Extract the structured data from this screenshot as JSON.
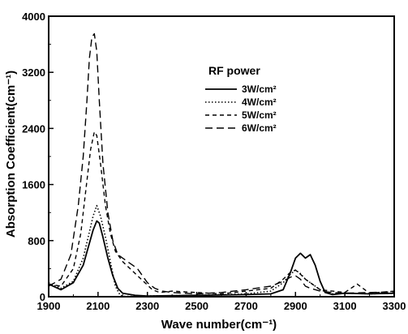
{
  "chart_data": {
    "type": "line",
    "title": "",
    "xlabel": "Wave number(cm⁻¹)",
    "ylabel": "Absorption Coefficient(cm⁻¹)",
    "xlim": [
      1900,
      3300
    ],
    "ylim": [
      0,
      4000
    ],
    "xticks": [
      "1900",
      "2100",
      "2300",
      "2500",
      "2700",
      "2900",
      "3100",
      "3300"
    ],
    "yticks": [
      "0",
      "800",
      "1600",
      "2400",
      "3200",
      "4000"
    ],
    "grid": false,
    "legend": {
      "title": "RF power",
      "placement": "top-right"
    },
    "series": [
      {
        "name": "3W/cm²",
        "dash": "solid",
        "x": [
          1900,
          1950,
          2000,
          2040,
          2060,
          2080,
          2095,
          2105,
          2120,
          2140,
          2160,
          2180,
          2200,
          2250,
          2300,
          2500,
          2700,
          2800,
          2850,
          2880,
          2900,
          2920,
          2940,
          2960,
          2980,
          3000,
          3020,
          3050,
          3100,
          3200,
          3300
        ],
        "y": [
          180,
          100,
          200,
          450,
          700,
          950,
          1080,
          1050,
          850,
          550,
          300,
          120,
          50,
          20,
          10,
          20,
          30,
          40,
          100,
          350,
          550,
          620,
          550,
          600,
          450,
          220,
          60,
          30,
          50,
          40,
          50
        ]
      },
      {
        "name": "4W/cm²",
        "dash": "dotted",
        "x": [
          1900,
          1950,
          2000,
          2040,
          2060,
          2080,
          2095,
          2110,
          2130,
          2150,
          2170,
          2190,
          2210,
          2250,
          2300,
          2500,
          2700,
          2800,
          2850,
          2880,
          2900,
          2920,
          2940,
          2960,
          2980,
          3000,
          3050,
          3100,
          3200,
          3300
        ],
        "y": [
          200,
          120,
          220,
          550,
          850,
          1150,
          1300,
          1150,
          850,
          500,
          150,
          20,
          5,
          5,
          10,
          20,
          40,
          80,
          200,
          320,
          380,
          330,
          250,
          200,
          150,
          100,
          40,
          50,
          40,
          50
        ]
      },
      {
        "name": "5W/cm²",
        "dash": "short-dash",
        "x": [
          1900,
          1950,
          2000,
          2030,
          2050,
          2070,
          2085,
          2095,
          2110,
          2130,
          2150,
          2170,
          2200,
          2230,
          2260,
          2290,
          2320,
          2350,
          2400,
          2500,
          2600,
          2700,
          2800,
          2850,
          2880,
          2900,
          2920,
          2940,
          2960,
          3000,
          3050,
          3100,
          3150,
          3200,
          3300
        ],
        "y": [
          180,
          150,
          400,
          900,
          1500,
          2100,
          2350,
          2300,
          1900,
          1300,
          900,
          650,
          500,
          400,
          300,
          200,
          100,
          60,
          80,
          60,
          40,
          80,
          120,
          250,
          350,
          380,
          320,
          250,
          200,
          100,
          80,
          60,
          180,
          50,
          80
        ]
      },
      {
        "name": "6W/cm²",
        "dash": "long-dash",
        "x": [
          1900,
          1950,
          1990,
          2020,
          2040,
          2055,
          2065,
          2075,
          2085,
          2095,
          2105,
          2120,
          2140,
          2160,
          2180,
          2200,
          2220,
          2240,
          2260,
          2280,
          2300,
          2330,
          2360,
          2400,
          2500,
          2600,
          2700,
          2800,
          2850,
          2880,
          2900,
          2920,
          2940,
          2960,
          3000,
          3050,
          3100,
          3200,
          3300
        ],
        "y": [
          150,
          250,
          600,
          1300,
          2000,
          2800,
          3400,
          3700,
          3750,
          3500,
          2800,
          1900,
          1200,
          800,
          600,
          550,
          500,
          450,
          400,
          300,
          200,
          120,
          80,
          60,
          40,
          60,
          100,
          150,
          220,
          280,
          300,
          250,
          150,
          120,
          80,
          60,
          50,
          60,
          70
        ]
      }
    ]
  }
}
